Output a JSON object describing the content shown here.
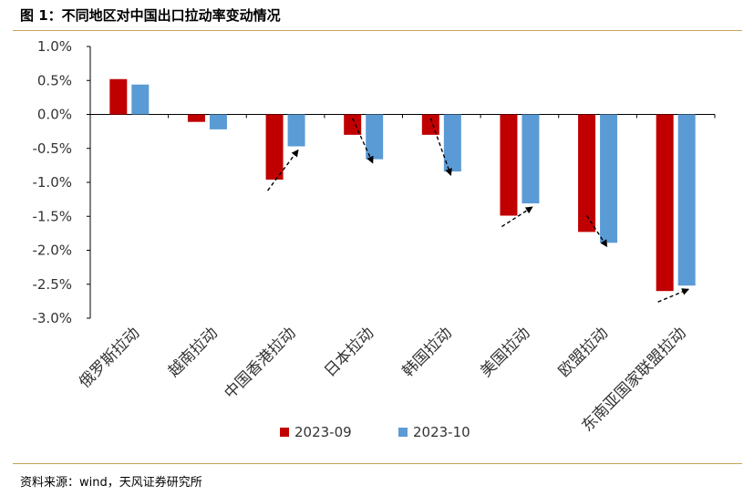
{
  "title": "图 1：不同地区对中国出口拉动率变动情况",
  "source": "资料来源：wind，天风证券研究所",
  "colors": {
    "s2023_09": "#c00000",
    "s2023_10": "#5b9bd5",
    "rule": "#c8a45a"
  },
  "chart_data": {
    "type": "bar",
    "categories": [
      "俄罗斯拉动",
      "越南拉动",
      "中国香港拉动",
      "日本拉动",
      "韩国拉动",
      "美国拉动",
      "欧盟拉动",
      "东南亚国家联盟拉动"
    ],
    "series": [
      {
        "name": "2023-09",
        "values": [
          0.52,
          -0.11,
          -0.96,
          -0.3,
          -0.3,
          -1.49,
          -1.73,
          -2.6
        ]
      },
      {
        "name": "2023-10",
        "values": [
          0.44,
          -0.22,
          -0.47,
          -0.66,
          -0.84,
          -1.31,
          -1.89,
          -2.52
        ]
      }
    ],
    "ylim": [
      -3.0,
      1.0
    ],
    "yticks": [
      "1.0%",
      "0.5%",
      "0.0%",
      "-0.5%",
      "-1.0%",
      "-1.5%",
      "-2.0%",
      "-2.5%",
      "-3.0%"
    ],
    "ytick_values": [
      1.0,
      0.5,
      0.0,
      -0.5,
      -1.0,
      -1.5,
      -2.0,
      -2.5,
      -3.0
    ],
    "legend_position": "bottom",
    "grid": false,
    "annotations": "dashed arrows from each 2023-09 bar to its 2023-10 bar (except 俄罗斯 and 越南)"
  }
}
